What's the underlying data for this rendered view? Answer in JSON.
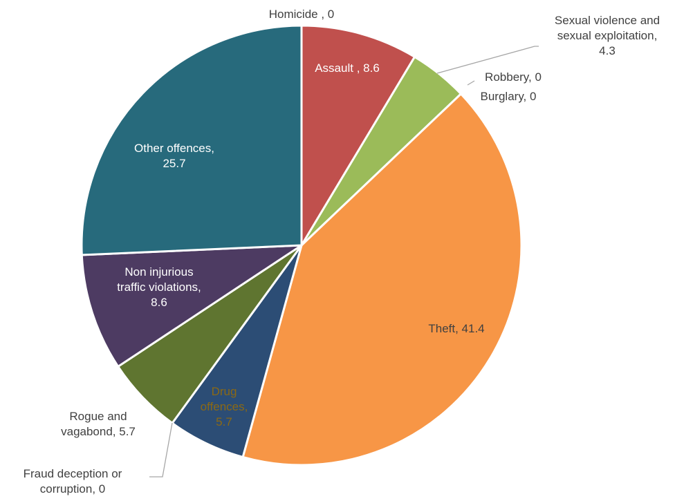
{
  "chart_data": {
    "type": "pie",
    "title": "",
    "start_angle_deg": 0,
    "direction": "clockwise",
    "slices": [
      {
        "label": "Homicide",
        "value": 0,
        "color": "#4F81BD",
        "label_lines": [
          "Homicide , 0"
        ]
      },
      {
        "label": "Assault",
        "value": 8.6,
        "color": "#C0504D",
        "label_lines": [
          "Assault , 8.6"
        ]
      },
      {
        "label": "Sexual violence and sexual exploitation",
        "value": 4.3,
        "color": "#9BBB59",
        "label_lines": [
          "Sexual violence and",
          "sexual exploitation,",
          "4.3"
        ]
      },
      {
        "label": "Robbery",
        "value": 0,
        "color": "#8064A2",
        "label_lines": [
          "Robbery, 0"
        ]
      },
      {
        "label": "Burglary",
        "value": 0,
        "color": "#4BACC6",
        "label_lines": [
          "Burglary, 0"
        ]
      },
      {
        "label": "Theft",
        "value": 41.4,
        "color": "#F79646",
        "label_lines": [
          "Theft, 41.4"
        ]
      },
      {
        "label": "Fraud deception or corruption",
        "value": 0,
        "color": "#2C4D75",
        "label_lines": [
          "Fraud deception or",
          "corruption, 0"
        ]
      },
      {
        "label": "Drug offences",
        "value": 5.7,
        "color": "#2C4D75",
        "label_color": "#8B6914",
        "label_lines": [
          "Drug",
          "offences,",
          "5.7"
        ]
      },
      {
        "label": "Rogue and vagabond",
        "value": 5.7,
        "color": "#5F7530",
        "label_lines": [
          "Rogue and",
          "vagabond, 5.7"
        ]
      },
      {
        "label": "Non injurious traffic violations",
        "value": 8.6,
        "color": "#4D3B62",
        "label_lines": [
          "Non injurious",
          "traffic violations,",
          "8.6"
        ]
      },
      {
        "label": "Other offences",
        "value": 25.7,
        "color": "#276A7C",
        "label_lines": [
          "Other offences,",
          "25.7"
        ]
      }
    ]
  }
}
